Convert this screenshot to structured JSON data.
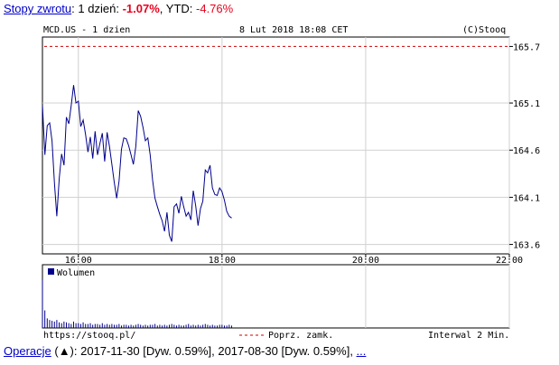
{
  "header": {
    "link_label": "Stopy zwrotu",
    "colon": ":",
    "period_label": "1 dzień:",
    "period_value": "-1.07%",
    "ytd_label": ", YTD:",
    "ytd_value": "-4.76%"
  },
  "chart_header": {
    "symbol": "MCD.US - 1 dzien",
    "datetime": "8 Lut 2018 18:08 CET",
    "copyright": "(C)Stooq"
  },
  "chart_footer": {
    "source": "https://stooq.pl/",
    "prev_close_label": "Poprz. zamk.",
    "interval": "Interwal 2 Min."
  },
  "volume_legend": "Wolumen",
  "footer": {
    "link_label": "Operacje",
    "arrow_text": " (▲): 2017-11-30 [Dyw. 0.59%], 2017-08-30 [Dyw. 0.59%], ",
    "more": "..."
  },
  "colors": {
    "price_line": "#00008b",
    "prev_close": "#cc0000",
    "volume": "#00008b",
    "negative": "#e8001c",
    "link": "#0000cc"
  },
  "chart_data": {
    "type": "line",
    "x_range": [
      "15:30",
      "22:00"
    ],
    "x_ticks": [
      "16:00",
      "18:00",
      "20:00",
      "22:00"
    ],
    "ylim": [
      163.5,
      165.8
    ],
    "y_ticks": [
      "165.7",
      "165.1",
      "164.6",
      "164.1",
      "163.6"
    ],
    "prev_close": 165.7,
    "series": [
      {
        "x": [
          "15:30",
          "15:32",
          "15:34",
          "15:36",
          "15:38",
          "15:40",
          "15:42",
          "15:44",
          "15:46",
          "15:48",
          "15:50",
          "15:52",
          "15:54",
          "15:56",
          "15:58",
          "16:00",
          "16:02",
          "16:04",
          "16:06",
          "16:08",
          "16:10",
          "16:12",
          "16:14",
          "16:16",
          "16:18",
          "16:20",
          "16:22",
          "16:24",
          "16:26",
          "16:28",
          "16:30",
          "16:32",
          "16:34",
          "16:36",
          "16:38",
          "16:40",
          "16:42",
          "16:44",
          "16:46",
          "16:48",
          "16:50",
          "16:52",
          "16:54",
          "16:56",
          "16:58",
          "17:00",
          "17:02",
          "17:04",
          "17:06",
          "17:08",
          "17:10",
          "17:12",
          "17:14",
          "17:16",
          "17:18",
          "17:20",
          "17:22",
          "17:24",
          "17:26",
          "17:28",
          "17:30",
          "17:32",
          "17:34",
          "17:36",
          "17:38",
          "17:40",
          "17:42",
          "17:44",
          "17:46",
          "17:48",
          "17:50",
          "17:52",
          "17:54",
          "17:56",
          "17:58",
          "18:00",
          "18:02",
          "18:04",
          "18:06",
          "18:08"
        ],
        "values": [
          165.08,
          164.55,
          164.86,
          164.89,
          164.7,
          164.25,
          163.9,
          164.3,
          164.56,
          164.44,
          164.95,
          164.88,
          165.07,
          165.29,
          165.1,
          165.12,
          164.85,
          164.92,
          164.77,
          164.58,
          164.74,
          164.51,
          164.8,
          164.55,
          164.67,
          164.78,
          164.48,
          164.79,
          164.64,
          164.45,
          164.26,
          164.09,
          164.27,
          164.61,
          164.73,
          164.72,
          164.65,
          164.55,
          164.45,
          164.64,
          165.02,
          164.96,
          164.84,
          164.7,
          164.73,
          164.55,
          164.28,
          164.09,
          164.0,
          163.92,
          163.85,
          163.74,
          163.94,
          163.7,
          163.63,
          164.0,
          164.03,
          163.93,
          164.11,
          164.0,
          163.9,
          163.94,
          163.86,
          164.17,
          164.01,
          163.8,
          163.98,
          164.06,
          164.39,
          164.36,
          164.44,
          164.2,
          164.13,
          164.12,
          164.2,
          164.16,
          164.07,
          163.95,
          163.9,
          163.88
        ]
      }
    ],
    "volume": {
      "label": "Wolumen",
      "values": [
        60,
        22,
        12,
        10,
        9,
        8,
        10,
        7,
        6,
        8,
        7,
        6,
        5,
        8,
        6,
        6,
        5,
        7,
        5,
        5,
        6,
        4,
        5,
        5,
        4,
        6,
        4,
        5,
        4,
        5,
        4,
        4,
        5,
        3,
        4,
        4,
        3,
        4,
        3,
        4,
        5,
        4,
        3,
        4,
        3,
        4,
        4,
        5,
        3,
        4,
        3,
        4,
        3,
        4,
        5,
        4,
        3,
        4,
        3,
        3,
        4,
        5,
        3,
        4,
        3,
        4,
        3,
        4,
        5,
        4,
        3,
        4,
        3,
        3,
        4,
        4,
        3,
        3,
        4,
        3
      ]
    }
  }
}
